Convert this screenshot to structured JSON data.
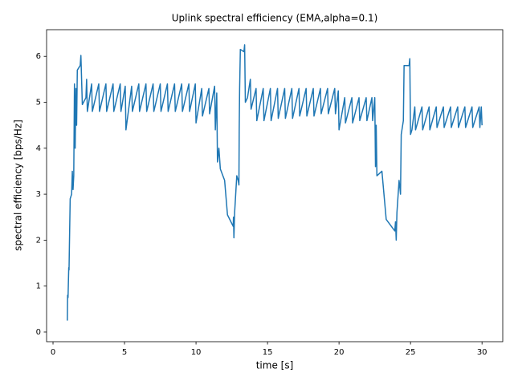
{
  "chart_data": {
    "type": "line",
    "title": "Uplink spectral efficiency (EMA,alpha=0.1)",
    "x_label": "time [s]",
    "y_label": "spectral efficiency [bps/Hz]",
    "color": "#1f77b4",
    "xlim": [
      -0.45,
      31.45
    ],
    "ylim": [
      -0.21,
      6.58
    ],
    "xticks": [
      0,
      5,
      10,
      15,
      20,
      25,
      30
    ],
    "yticks": [
      0,
      1,
      2,
      3,
      4,
      5,
      6
    ],
    "grid": false,
    "x": [
      1.0,
      1.02,
      1.05,
      1.1,
      1.12,
      1.15,
      1.2,
      1.3,
      1.35,
      1.4,
      1.45,
      1.5,
      1.55,
      1.6,
      1.65,
      1.7,
      1.9,
      1.95,
      2.05,
      2.3,
      2.35,
      2.4,
      2.7,
      2.75,
      3.2,
      3.25,
      3.7,
      3.75,
      4.2,
      4.25,
      4.7,
      4.75,
      5.05,
      5.1,
      5.5,
      5.55,
      6.0,
      6.05,
      6.5,
      6.55,
      7.0,
      7.05,
      7.5,
      7.55,
      8.0,
      8.05,
      8.5,
      8.55,
      9.0,
      9.05,
      9.5,
      9.55,
      9.95,
      10.0,
      10.4,
      10.45,
      10.9,
      10.95,
      11.3,
      11.35,
      11.45,
      11.5,
      11.6,
      11.7,
      12.0,
      12.2,
      12.6,
      12.62,
      12.65,
      12.7,
      12.85,
      12.95,
      13.0,
      13.02,
      13.05,
      13.1,
      13.35,
      13.4,
      13.45,
      13.6,
      13.8,
      13.85,
      14.2,
      14.25,
      14.7,
      14.75,
      15.2,
      15.25,
      15.7,
      15.75,
      16.2,
      16.25,
      16.7,
      16.75,
      17.2,
      17.25,
      17.7,
      17.75,
      18.2,
      18.25,
      18.7,
      18.75,
      19.2,
      19.25,
      19.7,
      19.75,
      19.95,
      20.0,
      20.4,
      20.45,
      20.9,
      20.95,
      21.4,
      21.45,
      21.9,
      21.95,
      22.3,
      22.35,
      22.5,
      22.55,
      22.6,
      22.65,
      23.0,
      23.3,
      23.9,
      23.95,
      24.0,
      24.05,
      24.2,
      24.3,
      24.35,
      24.5,
      24.55,
      24.9,
      24.95,
      25.0,
      25.1,
      25.3,
      25.35,
      25.8,
      25.85,
      26.3,
      26.35,
      26.8,
      26.85,
      27.3,
      27.35,
      27.8,
      27.85,
      28.3,
      28.35,
      28.8,
      28.85,
      29.3,
      29.35,
      29.8,
      29.85,
      29.95,
      30.0
    ],
    "values": [
      0.25,
      0.8,
      0.75,
      1.4,
      1.35,
      1.95,
      2.9,
      3.0,
      3.5,
      3.1,
      3.4,
      5.4,
      4.0,
      5.3,
      4.5,
      5.7,
      5.8,
      6.02,
      4.95,
      5.1,
      5.5,
      4.8,
      5.4,
      4.8,
      5.4,
      4.8,
      5.4,
      4.8,
      5.4,
      4.8,
      5.4,
      4.8,
      5.35,
      4.4,
      5.35,
      4.8,
      5.4,
      4.8,
      5.4,
      4.8,
      5.4,
      4.8,
      5.4,
      4.8,
      5.4,
      4.8,
      5.4,
      4.8,
      5.4,
      4.8,
      5.4,
      4.8,
      5.4,
      4.55,
      5.3,
      4.7,
      5.3,
      4.75,
      5.35,
      4.4,
      5.2,
      3.7,
      4.0,
      3.55,
      3.3,
      2.55,
      2.3,
      2.5,
      2.05,
      2.6,
      3.4,
      3.3,
      3.2,
      4.4,
      5.3,
      6.15,
      6.1,
      6.25,
      5.0,
      5.1,
      5.5,
      4.85,
      5.3,
      4.6,
      5.3,
      4.6,
      5.3,
      4.6,
      5.3,
      4.65,
      5.3,
      4.65,
      5.3,
      4.65,
      5.3,
      4.7,
      5.3,
      4.7,
      5.3,
      4.7,
      5.3,
      4.75,
      5.3,
      4.75,
      5.3,
      4.75,
      5.25,
      4.4,
      5.1,
      4.55,
      5.1,
      4.55,
      5.1,
      4.6,
      5.1,
      4.6,
      5.1,
      4.6,
      5.1,
      3.6,
      4.5,
      3.4,
      3.5,
      2.45,
      2.2,
      2.4,
      2.0,
      2.6,
      3.3,
      3.0,
      4.3,
      4.6,
      5.8,
      5.8,
      5.95,
      4.3,
      4.4,
      4.9,
      4.4,
      4.9,
      4.4,
      4.9,
      4.4,
      4.9,
      4.45,
      4.9,
      4.45,
      4.9,
      4.45,
      4.9,
      4.45,
      4.9,
      4.45,
      4.9,
      4.45,
      4.9,
      4.45,
      4.9,
      4.5
    ]
  }
}
